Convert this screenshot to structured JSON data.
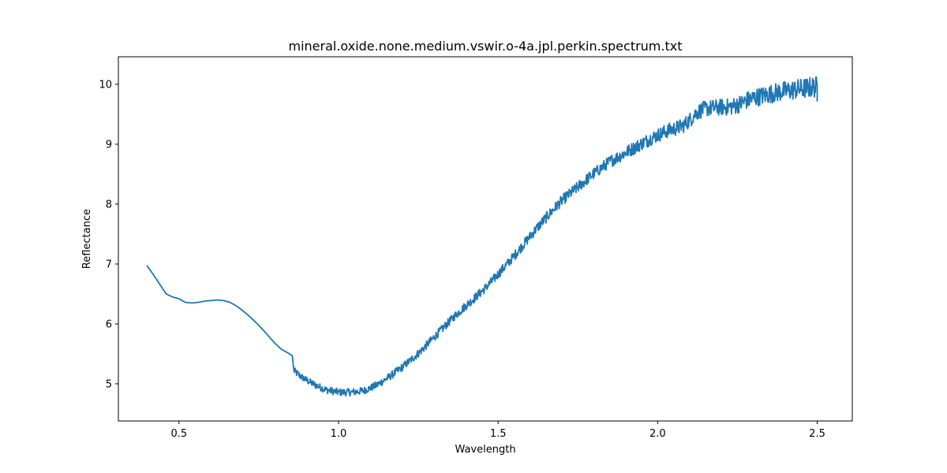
{
  "chart_data": {
    "type": "line",
    "title": "mineral.oxide.none.medium.vswir.o-4a.jpl.perkin.spectrum.txt",
    "xlabel": "Wavelength",
    "ylabel": "Reflectance",
    "xlim": [
      0.31,
      2.61
    ],
    "ylim": [
      4.38,
      10.46
    ],
    "xticks": [
      {
        "value": 0.5,
        "label": "0.5"
      },
      {
        "value": 1.0,
        "label": "1.0"
      },
      {
        "value": 1.5,
        "label": "1.5"
      },
      {
        "value": 2.0,
        "label": "2.0"
      },
      {
        "value": 2.5,
        "label": "2.5"
      }
    ],
    "yticks": [
      {
        "value": 5,
        "label": "5"
      },
      {
        "value": 6,
        "label": "6"
      },
      {
        "value": 7,
        "label": "7"
      },
      {
        "value": 8,
        "label": "8"
      },
      {
        "value": 9,
        "label": "9"
      },
      {
        "value": 10,
        "label": "10"
      }
    ],
    "grid": false,
    "legend": "none",
    "series": [
      {
        "color": "#1f77b4",
        "noise_regions": [
          {
            "x_start": 0.86,
            "x_end": 2.5,
            "amplitude_start": 0.06,
            "amplitude_end": 0.18
          }
        ],
        "points": [
          [
            0.4,
            6.97
          ],
          [
            0.42,
            6.82
          ],
          [
            0.44,
            6.66
          ],
          [
            0.46,
            6.5
          ],
          [
            0.48,
            6.45
          ],
          [
            0.5,
            6.42
          ],
          [
            0.52,
            6.36
          ],
          [
            0.54,
            6.35
          ],
          [
            0.56,
            6.36
          ],
          [
            0.58,
            6.38
          ],
          [
            0.6,
            6.39
          ],
          [
            0.62,
            6.4
          ],
          [
            0.64,
            6.39
          ],
          [
            0.66,
            6.36
          ],
          [
            0.68,
            6.3
          ],
          [
            0.7,
            6.22
          ],
          [
            0.72,
            6.13
          ],
          [
            0.74,
            6.03
          ],
          [
            0.76,
            5.92
          ],
          [
            0.78,
            5.8
          ],
          [
            0.8,
            5.68
          ],
          [
            0.82,
            5.58
          ],
          [
            0.84,
            5.52
          ],
          [
            0.855,
            5.47
          ],
          [
            0.86,
            5.22
          ],
          [
            0.88,
            5.13
          ],
          [
            0.9,
            5.06
          ],
          [
            0.92,
            5.0
          ],
          [
            0.94,
            4.95
          ],
          [
            0.96,
            4.9
          ],
          [
            0.98,
            4.88
          ],
          [
            1.0,
            4.86
          ],
          [
            1.02,
            4.86
          ],
          [
            1.04,
            4.86
          ],
          [
            1.06,
            4.87
          ],
          [
            1.08,
            4.89
          ],
          [
            1.1,
            4.93
          ],
          [
            1.12,
            4.98
          ],
          [
            1.14,
            5.05
          ],
          [
            1.16,
            5.12
          ],
          [
            1.18,
            5.2
          ],
          [
            1.2,
            5.28
          ],
          [
            1.22,
            5.37
          ],
          [
            1.24,
            5.46
          ],
          [
            1.26,
            5.56
          ],
          [
            1.28,
            5.67
          ],
          [
            1.3,
            5.78
          ],
          [
            1.32,
            5.89
          ],
          [
            1.34,
            6.0
          ],
          [
            1.36,
            6.11
          ],
          [
            1.38,
            6.21
          ],
          [
            1.4,
            6.31
          ],
          [
            1.42,
            6.4
          ],
          [
            1.44,
            6.5
          ],
          [
            1.46,
            6.6
          ],
          [
            1.48,
            6.71
          ],
          [
            1.5,
            6.83
          ],
          [
            1.52,
            6.95
          ],
          [
            1.54,
            7.07
          ],
          [
            1.56,
            7.2
          ],
          [
            1.58,
            7.33
          ],
          [
            1.6,
            7.46
          ],
          [
            1.62,
            7.59
          ],
          [
            1.64,
            7.71
          ],
          [
            1.66,
            7.83
          ],
          [
            1.68,
            7.95
          ],
          [
            1.7,
            8.06
          ],
          [
            1.72,
            8.15
          ],
          [
            1.74,
            8.24
          ],
          [
            1.76,
            8.33
          ],
          [
            1.78,
            8.42
          ],
          [
            1.8,
            8.51
          ],
          [
            1.82,
            8.59
          ],
          [
            1.84,
            8.67
          ],
          [
            1.86,
            8.74
          ],
          [
            1.88,
            8.8
          ],
          [
            1.9,
            8.86
          ],
          [
            1.92,
            8.92
          ],
          [
            1.94,
            8.98
          ],
          [
            1.96,
            9.04
          ],
          [
            1.98,
            9.1
          ],
          [
            2.0,
            9.15
          ],
          [
            2.02,
            9.2
          ],
          [
            2.04,
            9.24
          ],
          [
            2.06,
            9.27
          ],
          [
            2.08,
            9.31
          ],
          [
            2.1,
            9.4
          ],
          [
            2.12,
            9.52
          ],
          [
            2.14,
            9.58
          ],
          [
            2.16,
            9.6
          ],
          [
            2.18,
            9.61
          ],
          [
            2.2,
            9.62
          ],
          [
            2.22,
            9.62
          ],
          [
            2.24,
            9.64
          ],
          [
            2.26,
            9.68
          ],
          [
            2.28,
            9.73
          ],
          [
            2.3,
            9.77
          ],
          [
            2.32,
            9.8
          ],
          [
            2.34,
            9.82
          ],
          [
            2.36,
            9.85
          ],
          [
            2.38,
            9.87
          ],
          [
            2.4,
            9.89
          ],
          [
            2.42,
            9.9
          ],
          [
            2.44,
            9.92
          ],
          [
            2.46,
            9.93
          ],
          [
            2.48,
            9.95
          ],
          [
            2.5,
            9.96
          ]
        ]
      }
    ]
  }
}
